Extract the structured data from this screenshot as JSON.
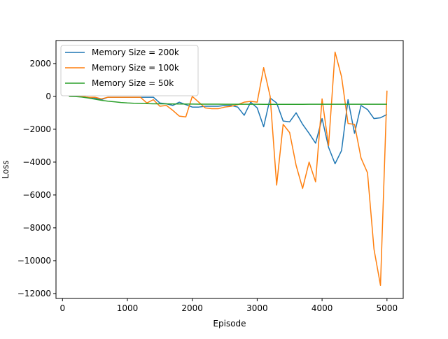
{
  "chart_data": {
    "type": "line",
    "title": "",
    "xlabel": "Episode",
    "ylabel": "Loss",
    "xlim": [
      -100,
      5250
    ],
    "ylim": [
      -12300,
      3400
    ],
    "xticks": [
      0,
      1000,
      2000,
      3000,
      4000,
      5000
    ],
    "yticks": [
      -12000,
      -10000,
      -8000,
      -6000,
      -4000,
      -2000,
      0,
      2000
    ],
    "xtick_labels": [
      "0",
      "1000",
      "2000",
      "3000",
      "4000",
      "5000"
    ],
    "ytick_labels": [
      "−12000",
      "−10000",
      "−8000",
      "−6000",
      "−4000",
      "−2000",
      "0",
      "2000"
    ],
    "grid": false,
    "legend_position": "upper-left",
    "x": [
      100,
      200,
      300,
      400,
      500,
      600,
      700,
      800,
      900,
      1000,
      1100,
      1200,
      1300,
      1400,
      1500,
      1600,
      1700,
      1800,
      1900,
      2000,
      2100,
      2200,
      2300,
      2400,
      2500,
      2600,
      2700,
      2800,
      2900,
      3000,
      3100,
      3200,
      3300,
      3400,
      3500,
      3600,
      3700,
      3800,
      3900,
      4000,
      4100,
      4200,
      4300,
      4400,
      4500,
      4600,
      4700,
      4800,
      4900,
      5000
    ],
    "series": [
      {
        "name": "Memory Size = 200k",
        "color": "#1f77b4",
        "values": [
          0,
          0,
          0,
          -50,
          -100,
          -200,
          -50,
          -50,
          -50,
          -50,
          -50,
          -50,
          -50,
          -50,
          -400,
          -450,
          -550,
          -350,
          -500,
          -650,
          -650,
          -600,
          -600,
          -600,
          -550,
          -550,
          -650,
          -1150,
          -350,
          -700,
          -1850,
          -100,
          -400,
          -1500,
          -1550,
          -1000,
          -1700,
          -2250,
          -2850,
          -1350,
          -3100,
          -4100,
          -3300,
          -200,
          -2250,
          -550,
          -800,
          -1350,
          -1300,
          -1100
        ]
      },
      {
        "name": "Memory Size = 100k",
        "color": "#ff7f0e",
        "values": [
          0,
          0,
          0,
          -50,
          -50,
          -150,
          -50,
          -50,
          -50,
          -50,
          -50,
          -50,
          -400,
          -200,
          -600,
          -550,
          -850,
          -1200,
          -1250,
          0,
          -350,
          -700,
          -750,
          -750,
          -650,
          -600,
          -500,
          -350,
          -300,
          -350,
          1750,
          0,
          -5400,
          -1700,
          -2200,
          -4200,
          -5600,
          -4000,
          -5200,
          -150,
          -3000,
          2700,
          1200,
          -1650,
          -1700,
          -3750,
          -4650,
          -9300,
          -11500,
          350
        ]
      },
      {
        "name": "Memory Size = 50k",
        "color": "#2ca02c",
        "values": [
          0,
          -10,
          -40,
          -100,
          -170,
          -240,
          -290,
          -330,
          -370,
          -400,
          -420,
          -430,
          -440,
          -450,
          -450,
          -455,
          -460,
          -462,
          -465,
          -467,
          -470,
          -472,
          -473,
          -474,
          -475,
          -476,
          -477,
          -478,
          -478,
          -479,
          -480,
          -480,
          -480,
          -480,
          -480,
          -480,
          -480,
          -479,
          -478,
          -478,
          -478,
          -478,
          -478,
          -478,
          -478,
          -478,
          -478,
          -478,
          -478,
          -478
        ]
      }
    ]
  }
}
